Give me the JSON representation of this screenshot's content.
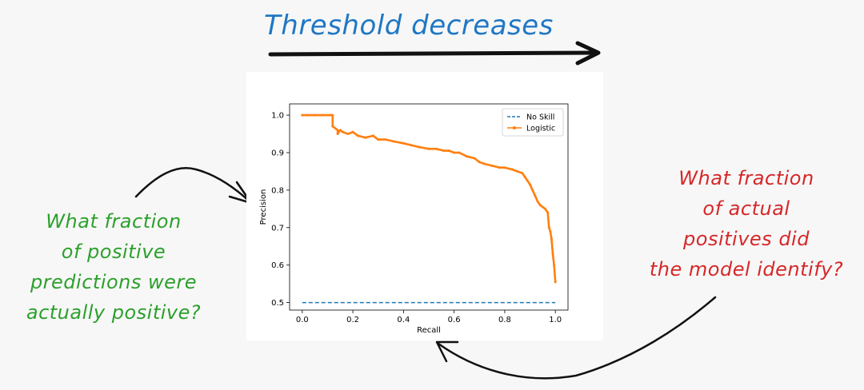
{
  "annotations": {
    "heading": "Threshold decreases",
    "left_note": [
      "What fraction",
      "of positive",
      "predictions were",
      "actually positive?"
    ],
    "right_note": [
      "What fraction",
      "of actual",
      "positives did",
      "the model identify?"
    ],
    "colors": {
      "heading": "#1f77c4",
      "left": "#2ca02c",
      "right": "#d62728",
      "arrow": "#111111"
    }
  },
  "chart_data": {
    "type": "line",
    "title": "",
    "xlabel": "Recall",
    "ylabel": "Precision",
    "xlim": [
      -0.05,
      1.05
    ],
    "ylim": [
      0.48,
      1.03
    ],
    "xticks": [
      0.0,
      0.2,
      0.4,
      0.6,
      0.8,
      1.0
    ],
    "yticks": [
      0.5,
      0.6,
      0.7,
      0.8,
      0.9,
      1.0
    ],
    "grid": false,
    "legend": "top-right",
    "series": [
      {
        "name": "No Skill",
        "style": "dashed",
        "color": "#1f77b4",
        "x": [
          0.0,
          1.0
        ],
        "y": [
          0.5,
          0.5
        ]
      },
      {
        "name": "Logistic",
        "style": "solid-marker",
        "color": "#ff7f0e",
        "x": [
          0.0,
          0.02,
          0.05,
          0.08,
          0.11,
          0.12,
          0.12,
          0.14,
          0.14,
          0.15,
          0.16,
          0.18,
          0.2,
          0.22,
          0.25,
          0.28,
          0.3,
          0.33,
          0.36,
          0.4,
          0.43,
          0.46,
          0.5,
          0.53,
          0.56,
          0.58,
          0.6,
          0.62,
          0.65,
          0.68,
          0.7,
          0.72,
          0.75,
          0.78,
          0.8,
          0.83,
          0.85,
          0.87,
          0.88,
          0.89,
          0.9,
          0.91,
          0.92,
          0.93,
          0.94,
          0.95,
          0.96,
          0.97,
          0.975,
          0.98,
          0.985,
          0.99,
          0.995,
          1.0
        ],
        "y": [
          1.0,
          1.0,
          1.0,
          1.0,
          1.0,
          1.0,
          0.97,
          0.96,
          0.95,
          0.96,
          0.955,
          0.95,
          0.955,
          0.945,
          0.94,
          0.945,
          0.935,
          0.935,
          0.93,
          0.925,
          0.92,
          0.915,
          0.91,
          0.91,
          0.905,
          0.905,
          0.9,
          0.9,
          0.89,
          0.885,
          0.875,
          0.87,
          0.865,
          0.86,
          0.86,
          0.855,
          0.85,
          0.845,
          0.835,
          0.825,
          0.815,
          0.8,
          0.785,
          0.77,
          0.76,
          0.755,
          0.75,
          0.74,
          0.7,
          0.69,
          0.67,
          0.63,
          0.6,
          0.555
        ]
      }
    ]
  }
}
